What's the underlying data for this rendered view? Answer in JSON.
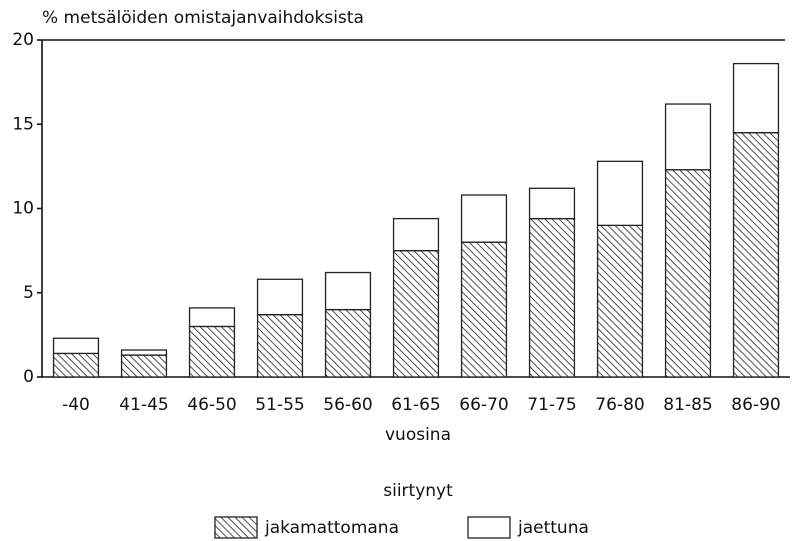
{
  "chart_data": {
    "type": "bar",
    "stacked": true,
    "title": "% metsälöiden omistajanvaihdoksista",
    "x_label": "vuosina",
    "legend_title": "siirtynyt",
    "categories": [
      "-40",
      "41-45",
      "46-50",
      "51-55",
      "56-60",
      "61-65",
      "66-70",
      "71-75",
      "76-80",
      "81-85",
      "86-90"
    ],
    "series": [
      {
        "name": "jakamattomana",
        "color": "#222222",
        "pattern": "hatch",
        "values": [
          1.4,
          1.3,
          3.0,
          3.7,
          4.0,
          7.5,
          8.0,
          9.4,
          9.0,
          12.3,
          14.5
        ]
      },
      {
        "name": "jaettuna",
        "color": "#ffffff",
        "pattern": "none",
        "values": [
          0.9,
          0.3,
          1.1,
          2.1,
          2.2,
          1.9,
          2.8,
          1.8,
          3.8,
          3.9,
          4.1
        ]
      }
    ],
    "ylim": [
      0,
      20
    ],
    "yticks": [
      0,
      5,
      10,
      15,
      20
    ],
    "grid": false,
    "legend": "bottom"
  }
}
